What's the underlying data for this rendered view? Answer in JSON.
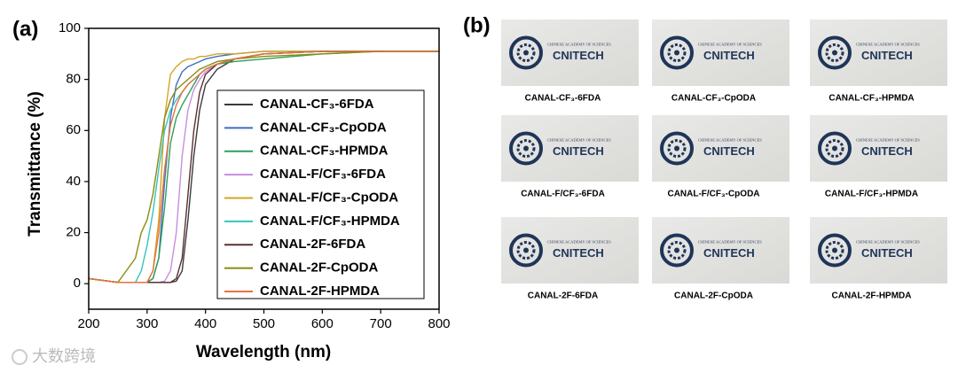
{
  "chart_data": {
    "type": "line",
    "panel_label": "(a)",
    "x_label": "Wavelength (nm)",
    "y_label": "Transmittance (%)",
    "xlim": [
      200,
      800
    ],
    "xticks": [
      200,
      300,
      400,
      500,
      600,
      700,
      800
    ],
    "ylim": [
      -10,
      100
    ],
    "yticks": [
      0,
      20,
      40,
      60,
      80,
      100
    ],
    "legend": "lower right",
    "x": [
      200,
      250,
      280,
      290,
      300,
      310,
      320,
      330,
      340,
      350,
      360,
      370,
      380,
      390,
      400,
      420,
      450,
      500,
      600,
      700,
      800
    ],
    "series": [
      {
        "name": "CANAL-CF₃-6FDA",
        "color": "#3a3a3a",
        "values": [
          2,
          0.5,
          0.5,
          0.5,
          0.5,
          0.5,
          0.5,
          0.5,
          0.5,
          1,
          5,
          25,
          50,
          68,
          78,
          84,
          88,
          90,
          91,
          91,
          91
        ]
      },
      {
        "name": "CANAL-CF₃-CpODA",
        "color": "#3b6fc4",
        "values": [
          2,
          0.5,
          0.5,
          0.5,
          0.5,
          2,
          10,
          40,
          65,
          78,
          83,
          85,
          86,
          87,
          88,
          89,
          90,
          91,
          91,
          91,
          91
        ]
      },
      {
        "name": "CANAL-CF₃-HPMDA",
        "color": "#2ca05a",
        "values": [
          2,
          0.5,
          0.5,
          0.5,
          0.5,
          2,
          10,
          30,
          55,
          65,
          70,
          74,
          78,
          82,
          84,
          86,
          87,
          88,
          90,
          91,
          91
        ]
      },
      {
        "name": "CANAL-F/CF₃-6FDA",
        "color": "#c78ee0",
        "values": [
          2,
          0.5,
          0.5,
          0.5,
          0.5,
          0.5,
          0.5,
          1,
          5,
          20,
          50,
          68,
          76,
          80,
          83,
          86,
          88,
          90,
          91,
          91,
          91
        ]
      },
      {
        "name": "CANAL-F/CF₃-CpODA",
        "color": "#d4a520",
        "values": [
          2,
          0.5,
          0.5,
          0.5,
          0.5,
          5,
          25,
          65,
          82,
          85,
          87,
          88,
          88,
          89,
          89,
          90,
          90,
          91,
          91,
          91,
          91
        ]
      },
      {
        "name": "CANAL-F/CF₃-HPMDA",
        "color": "#35c4c0",
        "values": [
          2,
          0.5,
          0.5,
          5,
          15,
          28,
          45,
          60,
          68,
          72,
          75,
          78,
          80,
          82,
          84,
          86,
          88,
          90,
          91,
          91,
          91
        ]
      },
      {
        "name": "CANAL-2F-6FDA",
        "color": "#5a3030",
        "values": [
          2,
          0.5,
          0.5,
          0.5,
          0.5,
          0.5,
          0.5,
          0.5,
          0.5,
          2,
          10,
          35,
          60,
          75,
          82,
          86,
          88,
          90,
          91,
          91,
          91
        ]
      },
      {
        "name": "CANAL-2F-CpODA",
        "color": "#8a8a10",
        "values": [
          2,
          0.5,
          10,
          20,
          25,
          35,
          50,
          65,
          72,
          76,
          78,
          80,
          82,
          84,
          85,
          87,
          88,
          89,
          90,
          91,
          91
        ]
      },
      {
        "name": "CANAL-2F-HPMDA",
        "color": "#e8723c",
        "values": [
          2,
          0.5,
          0.5,
          0.5,
          0.5,
          5,
          20,
          45,
          62,
          70,
          75,
          78,
          80,
          82,
          84,
          86,
          88,
          90,
          91,
          91,
          91
        ]
      }
    ]
  },
  "panel_b": {
    "panel_label": "(b)",
    "org": "CHINESE ACADEMY OF SCIENCES",
    "logo": "CNITECH",
    "captions": [
      "CANAL-CF₃-6FDA",
      "CANAL-CF₃-CpODA",
      "CANAL-CF₃-HPMDA",
      "CANAL-F/CF₃-6FDA",
      "CANAL-F/CF₃-CpODA",
      "CANAL-F/CF₃-HPMDA",
      "CANAL-2F-6FDA",
      "CANAL-2F-CpODA",
      "CANAL-2F-HPMDA"
    ]
  },
  "watermark": "大数跨境"
}
